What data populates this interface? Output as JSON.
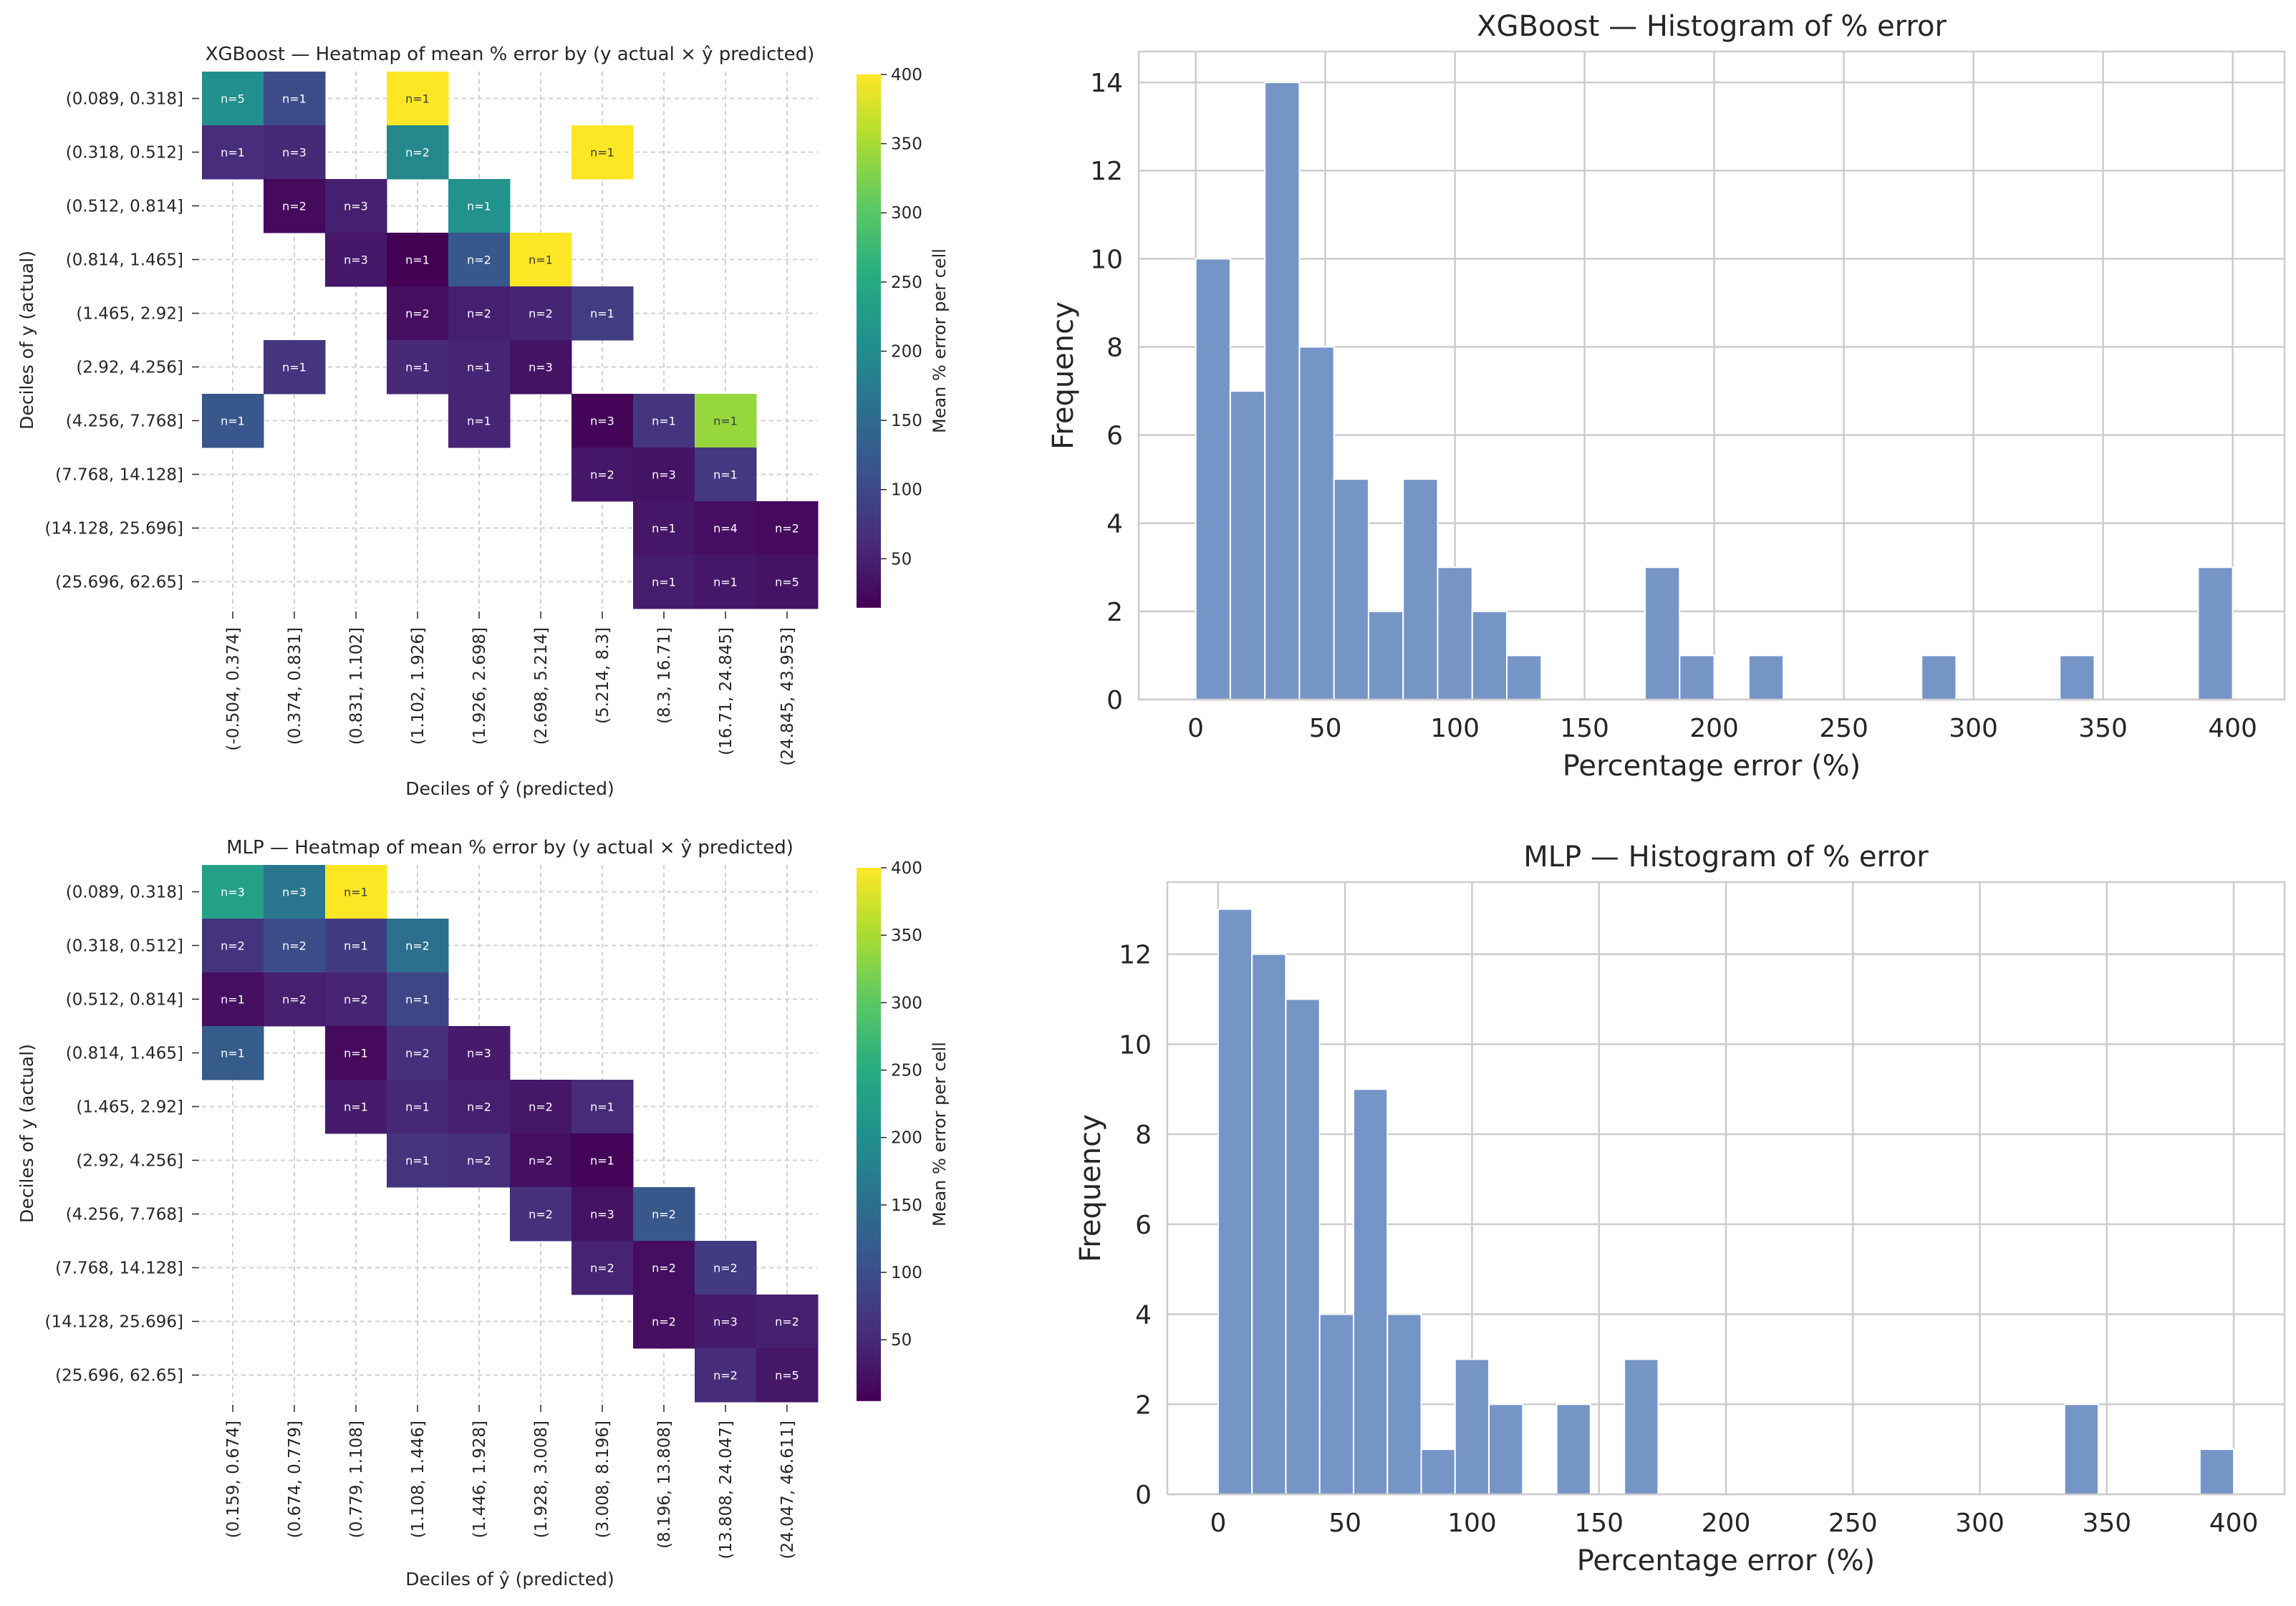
{
  "figure": {
    "background": "#ffffff"
  },
  "colors": {
    "viridis": [
      "#440154",
      "#472c7a",
      "#3b518b",
      "#2c718e",
      "#21908d",
      "#27ad81",
      "#5cc863",
      "#aadc32",
      "#fde725"
    ],
    "hist_bar": "#6f8fc4",
    "grid": "#cccccc",
    "axis_text": "#262626"
  },
  "chart_data": [
    {
      "id": "xgb_heatmap",
      "type": "heatmap",
      "title": "XGBoost — Heatmap of mean % error by (y actual × ŷ predicted)",
      "xlabel": "Deciles of ŷ (predicted)",
      "ylabel": "Deciles of y (actual)",
      "row_labels": [
        "(0.089, 0.318]",
        "(0.318, 0.512]",
        "(0.512, 0.814]",
        "(0.814, 1.465]",
        "(1.465, 2.92]",
        "(2.92, 4.256]",
        "(4.256, 7.768]",
        "(7.768, 14.128]",
        "(14.128, 25.696]",
        "(25.696, 62.65]"
      ],
      "col_labels": [
        "(-0.504, 0.374]",
        "(0.374, 0.831]",
        "(0.831, 1.102]",
        "(1.102, 1.926]",
        "(1.926, 2.698]",
        "(2.698, 5.214]",
        "(5.214, 8.3]",
        "(8.3, 16.71]",
        "(16.71, 24.845]",
        "(24.845, 43.953]"
      ],
      "colorbar": {
        "label": "Mean % error per cell",
        "ticks": [
          50,
          100,
          150,
          200,
          250,
          300,
          350,
          400
        ],
        "vmin": 15,
        "vmax": 400
      },
      "cells": [
        {
          "r": 0,
          "c": 0,
          "value": 205,
          "n": "n=5"
        },
        {
          "r": 0,
          "c": 1,
          "value": 105,
          "n": "n=1"
        },
        {
          "r": 0,
          "c": 3,
          "value": 400,
          "n": "n=1"
        },
        {
          "r": 1,
          "c": 0,
          "value": 65,
          "n": "n=1"
        },
        {
          "r": 1,
          "c": 1,
          "value": 60,
          "n": "n=3"
        },
        {
          "r": 1,
          "c": 3,
          "value": 195,
          "n": "n=2"
        },
        {
          "r": 1,
          "c": 6,
          "value": 400,
          "n": "n=1"
        },
        {
          "r": 2,
          "c": 1,
          "value": 25,
          "n": "n=2"
        },
        {
          "r": 2,
          "c": 2,
          "value": 50,
          "n": "n=3"
        },
        {
          "r": 2,
          "c": 4,
          "value": 210,
          "n": "n=1"
        },
        {
          "r": 3,
          "c": 2,
          "value": 40,
          "n": "n=3"
        },
        {
          "r": 3,
          "c": 3,
          "value": 10,
          "n": "n=1"
        },
        {
          "r": 3,
          "c": 4,
          "value": 120,
          "n": "n=2"
        },
        {
          "r": 3,
          "c": 5,
          "value": 400,
          "n": "n=1"
        },
        {
          "r": 4,
          "c": 3,
          "value": 30,
          "n": "n=2"
        },
        {
          "r": 4,
          "c": 4,
          "value": 50,
          "n": "n=2"
        },
        {
          "r": 4,
          "c": 5,
          "value": 55,
          "n": "n=2"
        },
        {
          "r": 4,
          "c": 6,
          "value": 85,
          "n": "n=1"
        },
        {
          "r": 5,
          "c": 1,
          "value": 75,
          "n": "n=1"
        },
        {
          "r": 5,
          "c": 3,
          "value": 60,
          "n": "n=1"
        },
        {
          "r": 5,
          "c": 4,
          "value": 55,
          "n": "n=1"
        },
        {
          "r": 5,
          "c": 5,
          "value": 35,
          "n": "n=3"
        },
        {
          "r": 6,
          "c": 0,
          "value": 120,
          "n": "n=1"
        },
        {
          "r": 6,
          "c": 4,
          "value": 55,
          "n": "n=1"
        },
        {
          "r": 6,
          "c": 6,
          "value": 20,
          "n": "n=3"
        },
        {
          "r": 6,
          "c": 7,
          "value": 75,
          "n": "n=1"
        },
        {
          "r": 6,
          "c": 8,
          "value": 340,
          "n": "n=1"
        },
        {
          "r": 7,
          "c": 6,
          "value": 40,
          "n": "n=2"
        },
        {
          "r": 7,
          "c": 7,
          "value": 35,
          "n": "n=3"
        },
        {
          "r": 7,
          "c": 8,
          "value": 80,
          "n": "n=1"
        },
        {
          "r": 8,
          "c": 7,
          "value": 40,
          "n": "n=1"
        },
        {
          "r": 8,
          "c": 8,
          "value": 30,
          "n": "n=4"
        },
        {
          "r": 8,
          "c": 9,
          "value": 25,
          "n": "n=2"
        },
        {
          "r": 9,
          "c": 7,
          "value": 45,
          "n": "n=1"
        },
        {
          "r": 9,
          "c": 8,
          "value": 40,
          "n": "n=1"
        },
        {
          "r": 9,
          "c": 9,
          "value": 35,
          "n": "n=5"
        }
      ]
    },
    {
      "id": "xgb_hist",
      "type": "bar",
      "title": "XGBoost — Histogram of % error",
      "xlabel": "Percentage error (%)",
      "ylabel": "Frequency",
      "bin_width": 13.33,
      "xlim": [
        -22,
        420
      ],
      "ylim": [
        0,
        14.7
      ],
      "xticks": [
        0,
        50,
        100,
        150,
        200,
        250,
        300,
        350,
        400
      ],
      "yticks": [
        0,
        2,
        4,
        6,
        8,
        10,
        12,
        14
      ],
      "bin_starts": [
        0,
        13.33,
        26.67,
        40,
        53.33,
        66.67,
        80,
        93.33,
        106.67,
        120,
        173.33,
        186.67,
        213.33,
        280,
        333.33,
        386.67
      ],
      "counts": [
        10,
        7,
        14,
        8,
        5,
        2,
        5,
        3,
        2,
        1,
        3,
        1,
        1,
        1,
        1,
        3
      ]
    },
    {
      "id": "mlp_heatmap",
      "type": "heatmap",
      "title": "MLP — Heatmap of mean % error by (y actual × ŷ predicted)",
      "xlabel": "Deciles of ŷ (predicted)",
      "ylabel": "Deciles of y (actual)",
      "row_labels": [
        "(0.089, 0.318]",
        "(0.318, 0.512]",
        "(0.512, 0.814]",
        "(0.814, 1.465]",
        "(1.465, 2.92]",
        "(2.92, 4.256]",
        "(4.256, 7.768]",
        "(7.768, 14.128]",
        "(14.128, 25.696]",
        "(25.696, 62.65]"
      ],
      "col_labels": [
        "(0.159, 0.674]",
        "(0.674, 0.779]",
        "(0.779, 1.108]",
        "(1.108, 1.446]",
        "(1.446, 1.928]",
        "(1.928, 3.008]",
        "(3.008, 8.196]",
        "(8.196, 13.808]",
        "(13.808, 24.047]",
        "(24.047, 46.611]"
      ],
      "colorbar": {
        "label": "Mean % error per cell",
        "ticks": [
          50,
          100,
          150,
          200,
          250,
          300,
          350,
          400
        ],
        "vmin": 5,
        "vmax": 400
      },
      "cells": [
        {
          "r": 0,
          "c": 0,
          "value": 230,
          "n": "n=3"
        },
        {
          "r": 0,
          "c": 1,
          "value": 160,
          "n": "n=3"
        },
        {
          "r": 0,
          "c": 2,
          "value": 400,
          "n": "n=1"
        },
        {
          "r": 1,
          "c": 0,
          "value": 65,
          "n": "n=2"
        },
        {
          "r": 1,
          "c": 1,
          "value": 100,
          "n": "n=2"
        },
        {
          "r": 1,
          "c": 2,
          "value": 75,
          "n": "n=1"
        },
        {
          "r": 1,
          "c": 3,
          "value": 150,
          "n": "n=2"
        },
        {
          "r": 2,
          "c": 0,
          "value": 20,
          "n": "n=1"
        },
        {
          "r": 2,
          "c": 1,
          "value": 40,
          "n": "n=2"
        },
        {
          "r": 2,
          "c": 2,
          "value": 45,
          "n": "n=2"
        },
        {
          "r": 2,
          "c": 3,
          "value": 90,
          "n": "n=1"
        },
        {
          "r": 3,
          "c": 0,
          "value": 120,
          "n": "n=1"
        },
        {
          "r": 3,
          "c": 2,
          "value": 15,
          "n": "n=1"
        },
        {
          "r": 3,
          "c": 3,
          "value": 60,
          "n": "n=2"
        },
        {
          "r": 3,
          "c": 4,
          "value": 35,
          "n": "n=3"
        },
        {
          "r": 4,
          "c": 2,
          "value": 35,
          "n": "n=1"
        },
        {
          "r": 4,
          "c": 3,
          "value": 50,
          "n": "n=1"
        },
        {
          "r": 4,
          "c": 4,
          "value": 40,
          "n": "n=2"
        },
        {
          "r": 4,
          "c": 5,
          "value": 30,
          "n": "n=2"
        },
        {
          "r": 4,
          "c": 6,
          "value": 55,
          "n": "n=1"
        },
        {
          "r": 5,
          "c": 3,
          "value": 65,
          "n": "n=1"
        },
        {
          "r": 5,
          "c": 4,
          "value": 60,
          "n": "n=2"
        },
        {
          "r": 5,
          "c": 5,
          "value": 20,
          "n": "n=2"
        },
        {
          "r": 5,
          "c": 6,
          "value": 10,
          "n": "n=1"
        },
        {
          "r": 6,
          "c": 5,
          "value": 60,
          "n": "n=2"
        },
        {
          "r": 6,
          "c": 6,
          "value": 25,
          "n": "n=3"
        },
        {
          "r": 6,
          "c": 7,
          "value": 115,
          "n": "n=2"
        },
        {
          "r": 7,
          "c": 6,
          "value": 45,
          "n": "n=2"
        },
        {
          "r": 7,
          "c": 7,
          "value": 20,
          "n": "n=2"
        },
        {
          "r": 7,
          "c": 8,
          "value": 75,
          "n": "n=2"
        },
        {
          "r": 8,
          "c": 7,
          "value": 20,
          "n": "n=2"
        },
        {
          "r": 8,
          "c": 8,
          "value": 35,
          "n": "n=3"
        },
        {
          "r": 8,
          "c": 9,
          "value": 40,
          "n": "n=2"
        },
        {
          "r": 9,
          "c": 8,
          "value": 55,
          "n": "n=2"
        },
        {
          "r": 9,
          "c": 9,
          "value": 30,
          "n": "n=5"
        }
      ]
    },
    {
      "id": "mlp_hist",
      "type": "bar",
      "title": "MLP — Histogram of % error",
      "xlabel": "Percentage error (%)",
      "ylabel": "Frequency",
      "bin_width": 13.33,
      "xlim": [
        -20,
        420
      ],
      "ylim": [
        0,
        13.6
      ],
      "xticks": [
        0,
        50,
        100,
        150,
        200,
        250,
        300,
        350,
        400
      ],
      "yticks": [
        0,
        2,
        4,
        6,
        8,
        10,
        12
      ],
      "bin_starts": [
        0,
        13.33,
        26.67,
        40,
        53.33,
        66.67,
        80,
        93.33,
        106.67,
        133.33,
        160,
        333.33,
        386.67
      ],
      "counts": [
        13,
        12,
        11,
        4,
        9,
        4,
        1,
        3,
        2,
        2,
        3,
        2,
        1
      ]
    }
  ]
}
